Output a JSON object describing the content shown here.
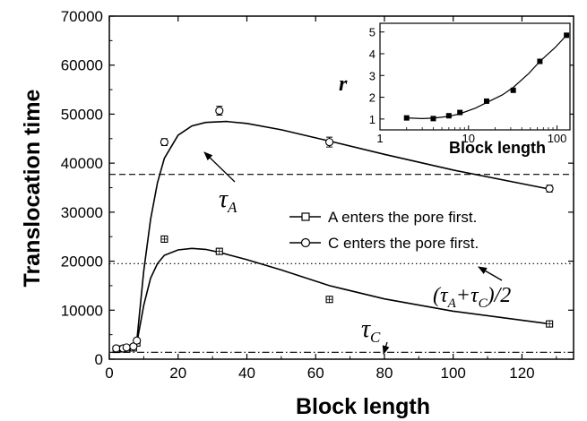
{
  "chart_data": [
    {
      "type": "scatter",
      "xlabel": "Block length",
      "ylabel": "Translocation time",
      "xlim": [
        0,
        135
      ],
      "ylim": [
        0,
        70000
      ],
      "xticks": [
        0,
        20,
        40,
        60,
        80,
        100,
        120
      ],
      "yticks": [
        0,
        10000,
        20000,
        30000,
        40000,
        50000,
        60000,
        70000
      ],
      "grid": false,
      "legend_position": "center-right",
      "series": [
        {
          "name": "A enters the pore first.",
          "marker": "square",
          "points": [
            {
              "x": 2,
              "y": 2000
            },
            {
              "x": 4,
              "y": 2100
            },
            {
              "x": 5,
              "y": 2100
            },
            {
              "x": 7,
              "y": 2300
            },
            {
              "x": 8,
              "y": 3300
            },
            {
              "x": 16,
              "y": 24500
            },
            {
              "x": 32,
              "y": 22000
            },
            {
              "x": 64,
              "y": 12200
            },
            {
              "x": 128,
              "y": 7200
            }
          ],
          "fit": [
            [
              8,
              3300
            ],
            [
              10,
              11000
            ],
            [
              12,
              16500
            ],
            [
              14,
              19500
            ],
            [
              16,
              21200
            ],
            [
              20,
              22300
            ],
            [
              24,
              22600
            ],
            [
              28,
              22400
            ],
            [
              32,
              21800
            ],
            [
              40,
              20300
            ],
            [
              50,
              18200
            ],
            [
              64,
              15000
            ],
            [
              80,
              12300
            ],
            [
              100,
              9800
            ],
            [
              128,
              7200
            ]
          ]
        },
        {
          "name": "C enters the pore first.",
          "marker": "circle",
          "points": [
            {
              "x": 2,
              "y": 2200
            },
            {
              "x": 4,
              "y": 2200
            },
            {
              "x": 5,
              "y": 2400
            },
            {
              "x": 7,
              "y": 2600
            },
            {
              "x": 8,
              "y": 3800
            },
            {
              "x": 16,
              "y": 44300
            },
            {
              "x": 32,
              "y": 50700
            },
            {
              "x": 64,
              "y": 44300
            },
            {
              "x": 128,
              "y": 34800
            }
          ],
          "error_bars": [
            {
              "x": 16,
              "y_low": 43600,
              "y_high": 45000
            },
            {
              "x": 32,
              "y_low": 49800,
              "y_high": 51600
            },
            {
              "x": 64,
              "y_low": 43300,
              "y_high": 45300
            },
            {
              "x": 128,
              "y_low": 34100,
              "y_high": 35500
            }
          ],
          "fit": [
            [
              8,
              3800
            ],
            [
              10,
              18000
            ],
            [
              12,
              28500
            ],
            [
              14,
              36000
            ],
            [
              16,
              41000
            ],
            [
              20,
              45700
            ],
            [
              24,
              47600
            ],
            [
              28,
              48300
            ],
            [
              34,
              48500
            ],
            [
              40,
              48100
            ],
            [
              50,
              46800
            ],
            [
              64,
              44500
            ],
            [
              80,
              41800
            ],
            [
              100,
              38600
            ],
            [
              128,
              34700
            ]
          ]
        }
      ],
      "reference_lines": [
        {
          "label": "τ_A",
          "y": 37700,
          "style": "dashed"
        },
        {
          "label": "(τ_A+τ_C)/2",
          "y": 19500,
          "style": "dotted"
        },
        {
          "label": "τ_C",
          "y": 1400,
          "style": "dash-dot"
        }
      ],
      "annotations": {
        "tau_a": {
          "base": "τ",
          "sub": "A"
        },
        "tau_avg": {
          "open": "(τ",
          "sub1": "A",
          "plus": "+τ",
          "sub2": "C",
          "close": ")/2"
        },
        "tau_c": {
          "base": "τ",
          "sub": "C"
        }
      }
    },
    {
      "type": "scatter",
      "role": "inset",
      "xlabel": "Block length",
      "ylabel": "r",
      "xscale": "log",
      "xlim": [
        1,
        140
      ],
      "ylim": [
        0.5,
        5.4
      ],
      "xticks": [
        1,
        10,
        100
      ],
      "yticks": [
        1,
        2,
        3,
        4,
        5
      ],
      "series": [
        {
          "marker": "square-filled",
          "points": [
            {
              "x": 2,
              "y": 1.05
            },
            {
              "x": 4,
              "y": 1.02
            },
            {
              "x": 6,
              "y": 1.15
            },
            {
              "x": 8,
              "y": 1.3
            },
            {
              "x": 16,
              "y": 1.82
            },
            {
              "x": 32,
              "y": 2.32
            },
            {
              "x": 64,
              "y": 3.65
            },
            {
              "x": 128,
              "y": 4.85
            }
          ],
          "fit": [
            [
              2,
              1.05
            ],
            [
              3,
              1.02
            ],
            [
              4,
              1.04
            ],
            [
              6,
              1.12
            ],
            [
              8,
              1.24
            ],
            [
              12,
              1.5
            ],
            [
              16,
              1.75
            ],
            [
              24,
              2.1
            ],
            [
              32,
              2.45
            ],
            [
              48,
              3.1
            ],
            [
              64,
              3.65
            ],
            [
              96,
              4.3
            ],
            [
              128,
              4.85
            ]
          ]
        }
      ]
    }
  ]
}
